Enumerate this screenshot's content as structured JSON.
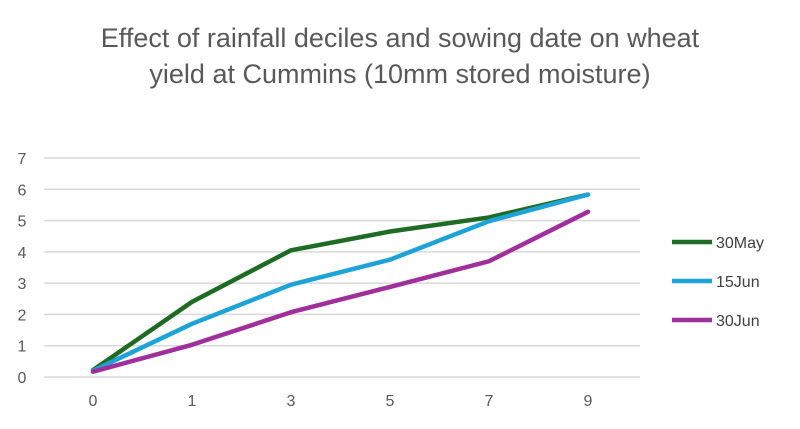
{
  "chart_data": {
    "type": "line",
    "title": "Effect of rainfall deciles and sowing date on wheat yield at Cummins (10mm stored moisture)",
    "xlabel": "",
    "ylabel": "",
    "categories": [
      "0",
      "1",
      "3",
      "5",
      "7",
      "9"
    ],
    "ylim": [
      0,
      7
    ],
    "yticks": [
      "0",
      "1",
      "2",
      "3",
      "4",
      "5",
      "6",
      "7"
    ],
    "grid": true,
    "legend": "right",
    "series": [
      {
        "name": "30May",
        "color": "#1e6b23",
        "values": [
          0.22,
          2.4,
          4.05,
          4.65,
          5.1,
          5.83
        ]
      },
      {
        "name": "15Jun",
        "color": "#1ea3d8",
        "values": [
          0.2,
          1.7,
          2.95,
          3.75,
          4.98,
          5.83
        ]
      },
      {
        "name": "30Jun",
        "color": "#a02e9b",
        "values": [
          0.17,
          1.03,
          2.07,
          2.88,
          3.7,
          5.28
        ]
      }
    ]
  }
}
